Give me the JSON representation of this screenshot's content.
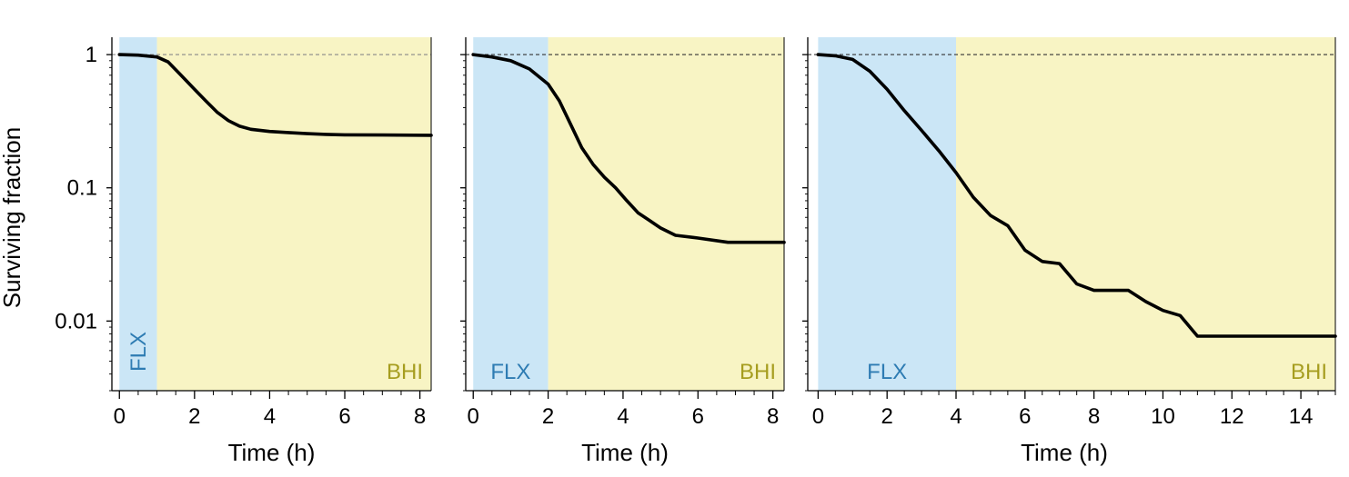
{
  "chart_data": [
    {
      "type": "line",
      "ylabel": "Surviving fraction",
      "xlabel": "Time (h)",
      "xlim": [
        -0.2,
        8.3
      ],
      "ylim": [
        0.003,
        1.35
      ],
      "yscale": "log",
      "xticks": [
        0,
        2,
        4,
        6,
        8
      ],
      "xminor_step": 0.5,
      "yticks": [
        {
          "value": 1,
          "label": "1"
        },
        {
          "value": 0.1,
          "label": "0.1"
        },
        {
          "value": 0.01,
          "label": "0.01"
        }
      ],
      "regions": [
        {
          "label": "FLX",
          "from": 0,
          "to": 1,
          "color": "#cbe6f6",
          "text_color": "#2e7cb3",
          "label_orientation": "vertical"
        },
        {
          "label": "BHI",
          "from": 1,
          "to": 8.3,
          "color": "#f8f4c4",
          "text_color": "#a69d1f"
        }
      ],
      "reference_line": 1,
      "series": [
        {
          "x": [
            0,
            0.5,
            1.0,
            1.3,
            1.6,
            2.0,
            2.3,
            2.6,
            2.9,
            3.2,
            3.5,
            4.0,
            4.5,
            5.0,
            5.5,
            6.0,
            7.0,
            8.3
          ],
          "y": [
            1.0,
            0.99,
            0.96,
            0.88,
            0.72,
            0.55,
            0.45,
            0.37,
            0.32,
            0.29,
            0.275,
            0.265,
            0.26,
            0.255,
            0.252,
            0.25,
            0.249,
            0.248
          ]
        }
      ]
    },
    {
      "type": "line",
      "xlabel": "Time (h)",
      "xlim": [
        -0.2,
        8.3
      ],
      "ylim": [
        0.003,
        1.35
      ],
      "yscale": "log",
      "xticks": [
        0,
        2,
        4,
        6,
        8
      ],
      "xminor_step": 0.5,
      "yticks": [
        {
          "value": 1,
          "label": ""
        },
        {
          "value": 0.1,
          "label": ""
        },
        {
          "value": 0.01,
          "label": ""
        }
      ],
      "regions": [
        {
          "label": "FLX",
          "from": 0,
          "to": 2,
          "color": "#cbe6f6",
          "text_color": "#2e7cb3"
        },
        {
          "label": "BHI",
          "from": 2,
          "to": 8.3,
          "color": "#f8f4c4",
          "text_color": "#a69d1f"
        }
      ],
      "reference_line": 1,
      "series": [
        {
          "x": [
            0,
            0.5,
            1.0,
            1.5,
            2.0,
            2.3,
            2.6,
            2.9,
            3.2,
            3.5,
            3.8,
            4.1,
            4.4,
            4.7,
            5.0,
            5.4,
            6.0,
            6.8,
            8.3
          ],
          "y": [
            1.0,
            0.96,
            0.9,
            0.78,
            0.6,
            0.45,
            0.3,
            0.2,
            0.15,
            0.12,
            0.1,
            0.08,
            0.065,
            0.057,
            0.05,
            0.044,
            0.042,
            0.039,
            0.039
          ]
        }
      ]
    },
    {
      "type": "line",
      "xlabel": "Time (h)",
      "xlim": [
        -0.3,
        15
      ],
      "ylim": [
        0.003,
        1.35
      ],
      "yscale": "log",
      "xticks": [
        0,
        2,
        4,
        6,
        8,
        10,
        12,
        14
      ],
      "xminor_step": 0.5,
      "yticks": [
        {
          "value": 1,
          "label": ""
        },
        {
          "value": 0.1,
          "label": ""
        },
        {
          "value": 0.01,
          "label": ""
        }
      ],
      "regions": [
        {
          "label": "FLX",
          "from": 0,
          "to": 4,
          "color": "#cbe6f6",
          "text_color": "#2e7cb3"
        },
        {
          "label": "BHI",
          "from": 4,
          "to": 15,
          "color": "#f8f4c4",
          "text_color": "#a69d1f"
        }
      ],
      "reference_line": 1,
      "series": [
        {
          "x": [
            0,
            0.5,
            1.0,
            1.5,
            2.0,
            2.5,
            3.0,
            3.5,
            4.0,
            4.5,
            5.0,
            5.5,
            6.0,
            6.5,
            7.0,
            7.5,
            8.0,
            9.0,
            9.5,
            10.0,
            10.5,
            11.0,
            12.0,
            15.0
          ],
          "y": [
            1.0,
            0.98,
            0.92,
            0.75,
            0.55,
            0.38,
            0.27,
            0.19,
            0.13,
            0.085,
            0.062,
            0.052,
            0.034,
            0.028,
            0.027,
            0.019,
            0.017,
            0.017,
            0.014,
            0.012,
            0.011,
            0.0077,
            0.0077,
            0.0077
          ]
        }
      ]
    }
  ]
}
